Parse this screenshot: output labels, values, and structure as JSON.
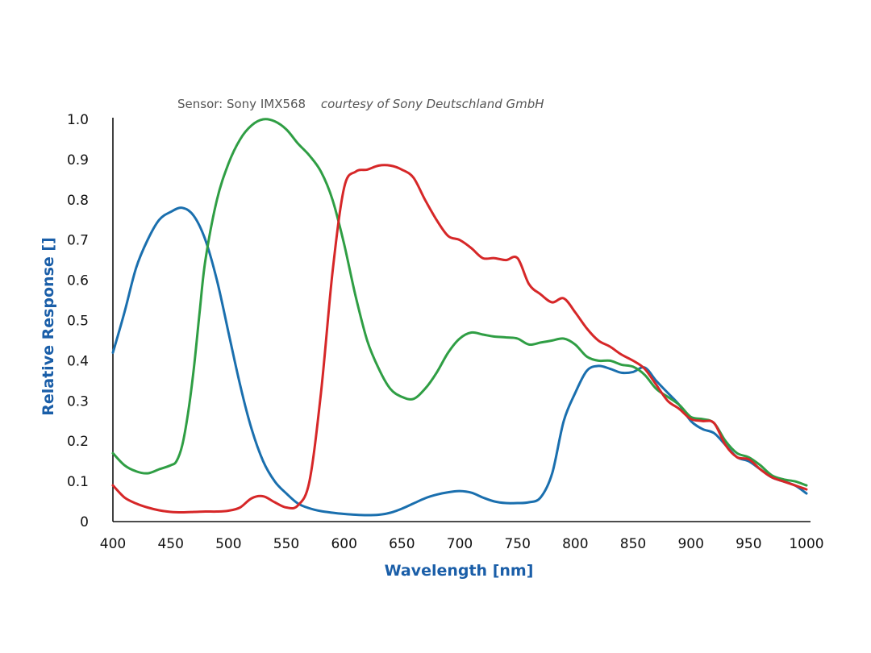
{
  "chart_data": {
    "type": "line",
    "caption": "Sensor: Sony IMX568",
    "credit": "courtesy of Sony Deutschland GmbH",
    "xlabel": "Wavelength [nm]",
    "ylabel": "Relative Response []",
    "xlim": [
      400,
      1000
    ],
    "ylim": [
      0,
      1.0
    ],
    "x_ticks": [
      400,
      450,
      500,
      550,
      600,
      650,
      700,
      750,
      800,
      850,
      900,
      950,
      1000
    ],
    "y_ticks": [
      0,
      0.1,
      0.2,
      0.3,
      0.4,
      0.5,
      0.6,
      0.7,
      0.8,
      0.9,
      1.0
    ],
    "y_tick_labels": [
      "0",
      "0.1",
      "0.2",
      "0.3",
      "0.4",
      "0.5",
      "0.6",
      "0.7",
      "0.8",
      "0.9",
      "1.0"
    ],
    "grid": false,
    "legend": "none",
    "title_color": "#1a5ea8",
    "series": [
      {
        "color": "#1a6fae",
        "points": [
          [
            400,
            0.42
          ],
          [
            410,
            0.52
          ],
          [
            420,
            0.63
          ],
          [
            430,
            0.7
          ],
          [
            440,
            0.75
          ],
          [
            450,
            0.77
          ],
          [
            460,
            0.78
          ],
          [
            470,
            0.76
          ],
          [
            480,
            0.7
          ],
          [
            490,
            0.6
          ],
          [
            500,
            0.47
          ],
          [
            510,
            0.34
          ],
          [
            520,
            0.23
          ],
          [
            530,
            0.15
          ],
          [
            540,
            0.1
          ],
          [
            550,
            0.07
          ],
          [
            560,
            0.045
          ],
          [
            570,
            0.033
          ],
          [
            580,
            0.026
          ],
          [
            590,
            0.022
          ],
          [
            600,
            0.019
          ],
          [
            610,
            0.017
          ],
          [
            620,
            0.016
          ],
          [
            630,
            0.017
          ],
          [
            640,
            0.022
          ],
          [
            650,
            0.032
          ],
          [
            660,
            0.045
          ],
          [
            670,
            0.058
          ],
          [
            680,
            0.067
          ],
          [
            690,
            0.073
          ],
          [
            700,
            0.076
          ],
          [
            710,
            0.072
          ],
          [
            720,
            0.06
          ],
          [
            730,
            0.05
          ],
          [
            740,
            0.046
          ],
          [
            750,
            0.046
          ],
          [
            760,
            0.048
          ],
          [
            770,
            0.06
          ],
          [
            780,
            0.12
          ],
          [
            790,
            0.25
          ],
          [
            800,
            0.32
          ],
          [
            810,
            0.375
          ],
          [
            820,
            0.387
          ],
          [
            830,
            0.38
          ],
          [
            840,
            0.37
          ],
          [
            850,
            0.372
          ],
          [
            860,
            0.383
          ],
          [
            870,
            0.35
          ],
          [
            880,
            0.32
          ],
          [
            890,
            0.29
          ],
          [
            900,
            0.25
          ],
          [
            910,
            0.23
          ],
          [
            920,
            0.22
          ],
          [
            930,
            0.19
          ],
          [
            940,
            0.16
          ],
          [
            950,
            0.15
          ],
          [
            960,
            0.13
          ],
          [
            970,
            0.11
          ],
          [
            980,
            0.1
          ],
          [
            990,
            0.09
          ],
          [
            1000,
            0.07
          ]
        ]
      },
      {
        "color": "#2f9e44",
        "points": [
          [
            400,
            0.17
          ],
          [
            410,
            0.14
          ],
          [
            420,
            0.125
          ],
          [
            430,
            0.12
          ],
          [
            440,
            0.13
          ],
          [
            450,
            0.14
          ],
          [
            455,
            0.15
          ],
          [
            460,
            0.19
          ],
          [
            465,
            0.27
          ],
          [
            470,
            0.38
          ],
          [
            475,
            0.52
          ],
          [
            480,
            0.65
          ],
          [
            490,
            0.8
          ],
          [
            500,
            0.89
          ],
          [
            510,
            0.95
          ],
          [
            520,
            0.985
          ],
          [
            530,
            1.0
          ],
          [
            540,
            0.995
          ],
          [
            550,
            0.975
          ],
          [
            560,
            0.94
          ],
          [
            570,
            0.91
          ],
          [
            580,
            0.87
          ],
          [
            590,
            0.8
          ],
          [
            600,
            0.69
          ],
          [
            610,
            0.56
          ],
          [
            620,
            0.45
          ],
          [
            630,
            0.38
          ],
          [
            640,
            0.33
          ],
          [
            650,
            0.31
          ],
          [
            660,
            0.305
          ],
          [
            670,
            0.33
          ],
          [
            680,
            0.37
          ],
          [
            690,
            0.42
          ],
          [
            700,
            0.455
          ],
          [
            710,
            0.47
          ],
          [
            720,
            0.465
          ],
          [
            730,
            0.46
          ],
          [
            740,
            0.458
          ],
          [
            750,
            0.455
          ],
          [
            760,
            0.44
          ],
          [
            770,
            0.445
          ],
          [
            780,
            0.45
          ],
          [
            790,
            0.455
          ],
          [
            800,
            0.44
          ],
          [
            810,
            0.41
          ],
          [
            820,
            0.4
          ],
          [
            830,
            0.4
          ],
          [
            840,
            0.39
          ],
          [
            850,
            0.385
          ],
          [
            860,
            0.365
          ],
          [
            870,
            0.33
          ],
          [
            880,
            0.31
          ],
          [
            890,
            0.29
          ],
          [
            900,
            0.26
          ],
          [
            910,
            0.255
          ],
          [
            920,
            0.245
          ],
          [
            930,
            0.2
          ],
          [
            940,
            0.17
          ],
          [
            950,
            0.16
          ],
          [
            960,
            0.14
          ],
          [
            970,
            0.115
          ],
          [
            980,
            0.105
          ],
          [
            990,
            0.1
          ],
          [
            1000,
            0.09
          ]
        ]
      },
      {
        "color": "#d62728",
        "points": [
          [
            400,
            0.09
          ],
          [
            410,
            0.06
          ],
          [
            420,
            0.045
          ],
          [
            430,
            0.035
          ],
          [
            440,
            0.028
          ],
          [
            450,
            0.024
          ],
          [
            460,
            0.023
          ],
          [
            470,
            0.024
          ],
          [
            480,
            0.025
          ],
          [
            490,
            0.025
          ],
          [
            500,
            0.027
          ],
          [
            510,
            0.035
          ],
          [
            520,
            0.058
          ],
          [
            530,
            0.063
          ],
          [
            540,
            0.048
          ],
          [
            550,
            0.035
          ],
          [
            560,
            0.04
          ],
          [
            570,
            0.1
          ],
          [
            580,
            0.32
          ],
          [
            590,
            0.62
          ],
          [
            600,
            0.83
          ],
          [
            610,
            0.87
          ],
          [
            620,
            0.875
          ],
          [
            630,
            0.885
          ],
          [
            640,
            0.885
          ],
          [
            650,
            0.875
          ],
          [
            660,
            0.855
          ],
          [
            670,
            0.8
          ],
          [
            680,
            0.75
          ],
          [
            690,
            0.71
          ],
          [
            700,
            0.7
          ],
          [
            710,
            0.68
          ],
          [
            720,
            0.655
          ],
          [
            730,
            0.655
          ],
          [
            740,
            0.65
          ],
          [
            750,
            0.655
          ],
          [
            760,
            0.59
          ],
          [
            770,
            0.565
          ],
          [
            780,
            0.545
          ],
          [
            790,
            0.555
          ],
          [
            800,
            0.52
          ],
          [
            810,
            0.48
          ],
          [
            820,
            0.45
          ],
          [
            830,
            0.435
          ],
          [
            840,
            0.415
          ],
          [
            850,
            0.4
          ],
          [
            860,
            0.38
          ],
          [
            870,
            0.34
          ],
          [
            880,
            0.3
          ],
          [
            890,
            0.28
          ],
          [
            900,
            0.255
          ],
          [
            910,
            0.25
          ],
          [
            920,
            0.245
          ],
          [
            930,
            0.19
          ],
          [
            940,
            0.16
          ],
          [
            950,
            0.155
          ],
          [
            960,
            0.13
          ],
          [
            970,
            0.11
          ],
          [
            980,
            0.1
          ],
          [
            990,
            0.09
          ],
          [
            1000,
            0.08
          ]
        ]
      }
    ]
  }
}
